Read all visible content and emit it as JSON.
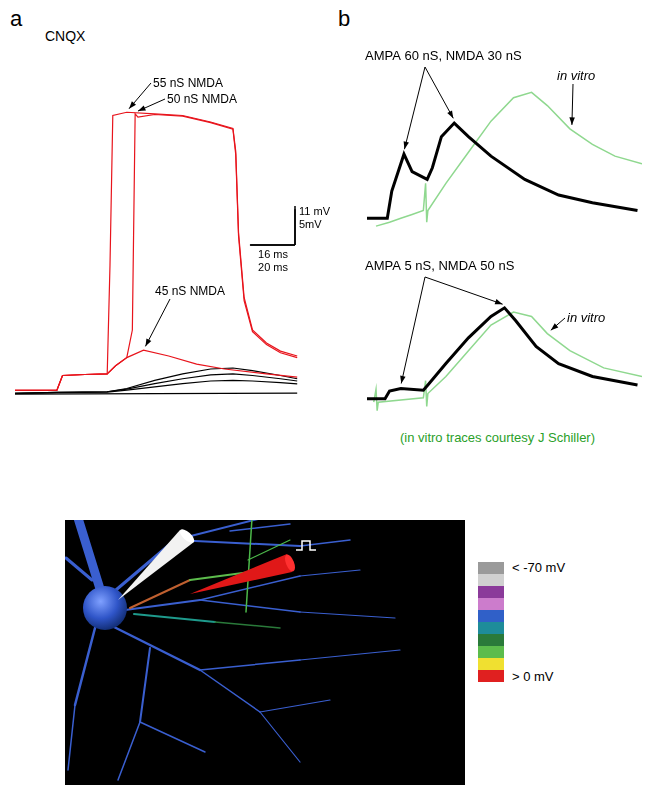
{
  "chart_data": [
    {
      "type": "line",
      "panel": "a",
      "title": "CNQX",
      "xlim": [
        0,
        102
      ],
      "ylim": [
        0,
        100
      ],
      "tick_labels": false,
      "grid": false,
      "series": [
        {
          "name": "55 nS NMDA",
          "color": "#e8141c",
          "x": [
            0,
            15,
            17,
            25,
            33,
            34,
            35,
            40,
            50,
            60,
            70,
            78,
            79,
            80,
            82,
            85,
            90,
            95,
            101
          ],
          "values": [
            1.4,
            1.5,
            6,
            6.3,
            6.5,
            40,
            86,
            87,
            86.5,
            86,
            84,
            82,
            75,
            50,
            30,
            20,
            16,
            13.5,
            12
          ]
        },
        {
          "name": "50 nS NMDA",
          "color": "#e8141c",
          "x": [
            0,
            15,
            17,
            25,
            33,
            36,
            40,
            42,
            43,
            44,
            50,
            60,
            70,
            78,
            79,
            80,
            82,
            85,
            90,
            95,
            101
          ],
          "values": [
            1.4,
            1.5,
            6,
            6.3,
            6.5,
            9,
            11.5,
            20,
            86.5,
            85.5,
            86.3,
            85.8,
            83.8,
            81.8,
            74,
            49,
            29,
            19.5,
            15.5,
            13,
            11.5
          ]
        },
        {
          "name": "45 nS NMDA",
          "color": "#e8141c",
          "x": [
            0,
            15,
            17,
            25,
            33,
            36,
            40,
            46,
            55,
            65,
            75,
            90,
            101
          ],
          "values": [
            1.4,
            1.5,
            6,
            6.3,
            6.5,
            9,
            11.5,
            13.8,
            12,
            9.5,
            8,
            6.5,
            5.5
          ]
        },
        {
          "color": "#000000",
          "x": [
            0,
            15,
            33,
            40,
            50,
            60,
            70,
            78,
            85,
            95,
            101
          ],
          "values": [
            0.5,
            0.8,
            1,
            2,
            4.5,
            6.5,
            8,
            8.3,
            7.5,
            6,
            5
          ]
        },
        {
          "color": "#000000",
          "x": [
            0,
            15,
            33,
            40,
            50,
            60,
            70,
            78,
            85,
            95,
            101
          ],
          "values": [
            0.5,
            0.8,
            1,
            1.8,
            3.5,
            5,
            6.2,
            6.5,
            6,
            5,
            4.3
          ]
        },
        {
          "color": "#000000",
          "x": [
            0,
            15,
            33,
            40,
            50,
            60,
            70,
            78,
            85,
            95,
            101
          ],
          "values": [
            0.5,
            0.7,
            0.9,
            1.5,
            2.5,
            3.5,
            4.3,
            4.5,
            4.3,
            3.8,
            3.4
          ]
        },
        {
          "color": "#000000",
          "x": [
            0,
            101
          ],
          "values": [
            0.3,
            0.6
          ]
        }
      ]
    },
    {
      "type": "line",
      "panel": "b",
      "title": "AMPA 60 nS, NMDA 30 nS",
      "xlim": [
        0,
        122
      ],
      "ylim": [
        0,
        18
      ],
      "tick_labels": false,
      "grid": false,
      "series": [
        {
          "color": "#000000",
          "x": [
            0,
            3,
            9,
            11,
            16.4,
            20,
            26.7,
            29,
            33,
            38.7,
            45,
            55,
            70,
            85,
            100,
            120
          ],
          "values": [
            1.5,
            1.5,
            1.5,
            5,
            9.75,
            7.5,
            6.5,
            8,
            12,
            13.75,
            12,
            9.5,
            6.5,
            4.5,
            3.5,
            2.5
          ]
        },
        {
          "name": "in vitro",
          "color": "#8fd88f",
          "x": [
            4,
            10,
            15,
            20,
            25,
            26,
            26.5,
            27,
            35,
            45,
            55,
            65,
            73,
            80,
            90,
            100,
            110,
            122
          ],
          "values": [
            0.5,
            1,
            1.5,
            2,
            2.5,
            6,
            1,
            2.5,
            6,
            10,
            14,
            17,
            17.7,
            16,
            13,
            11,
            9.5,
            8.5
          ]
        }
      ]
    },
    {
      "type": "line",
      "title": "AMPA 5 nS, NMDA 50 nS",
      "xlim": [
        0,
        122
      ],
      "ylim": [
        0,
        14
      ],
      "tick_labels": false,
      "grid": false,
      "series": [
        {
          "color": "#000000",
          "x": [
            0,
            8,
            10,
            15,
            25,
            27,
            35,
            45,
            55,
            61,
            66,
            75,
            85,
            100,
            120
          ],
          "values": [
            1.9,
            1.9,
            2.8,
            3.1,
            2.9,
            3.5,
            6,
            9,
            11.5,
            12.5,
            11,
            8,
            6,
            4.5,
            3.5
          ]
        },
        {
          "name": "in vitro",
          "color": "#8fd88f",
          "x": [
            3,
            4,
            4.5,
            5,
            25,
            26,
            26.5,
            27,
            35,
            45,
            55,
            65,
            73,
            80,
            90,
            105,
            122
          ],
          "values": [
            1.5,
            3,
            0.5,
            1.5,
            2,
            4,
            1,
            2.5,
            4.5,
            7.5,
            10.5,
            12,
            11.5,
            9.5,
            7.5,
            5.5,
            4.5
          ]
        }
      ]
    }
  ],
  "scale_bar": {
    "y": [
      {
        "value": 11,
        "label": "11 mV"
      },
      {
        "value": 5,
        "label": "5mV"
      }
    ],
    "x": [
      {
        "value": 16,
        "label": "16 ms"
      },
      {
        "value": 20,
        "label": "20 ms"
      }
    ]
  },
  "footnote": "(in vitro traces courtesy J Schiller)",
  "diagram": {
    "colorbar": {
      "colors": [
        "#9a9a9a",
        "#d0d0d0",
        "#8b3a9a",
        "#cc7ccc",
        "#3060c8",
        "#1e8c9a",
        "#2a7a3a",
        "#5cbc4c",
        "#f0e030",
        "#e02020"
      ],
      "labels": [
        "< -70 mV",
        "> 0 mV"
      ]
    }
  }
}
